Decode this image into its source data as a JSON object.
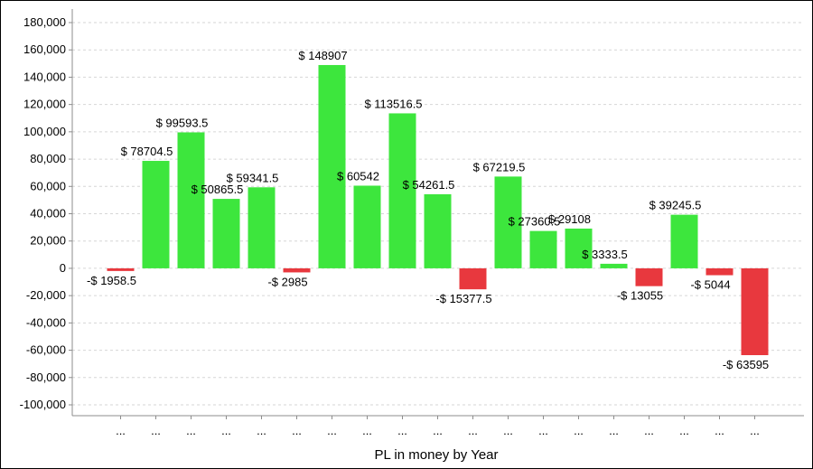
{
  "chart_data": {
    "type": "bar",
    "title": "",
    "xlabel": "PL in money by Year",
    "ylabel": "",
    "ylim": [
      -100000,
      180000
    ],
    "y_ticks": [
      180000,
      160000,
      140000,
      120000,
      100000,
      80000,
      60000,
      40000,
      20000,
      0,
      -20000,
      -40000,
      -60000,
      -80000,
      -100000
    ],
    "y_tick_labels": [
      "180,000",
      "160,000",
      "140,000",
      "120,000",
      "100,000",
      "80,000",
      "60,000",
      "40,000",
      "20,000",
      "0",
      "-20,000",
      "-40,000",
      "-60,000",
      "-80,000",
      "-100,000"
    ],
    "grid": true,
    "legend": "none",
    "categories": [
      "...",
      "...",
      "...",
      "...",
      "...",
      "...",
      "...",
      "...",
      "...",
      "...",
      "...",
      "...",
      "...",
      "...",
      "...",
      "...",
      "...",
      "...",
      "..."
    ],
    "values": [
      -1958.5,
      78704.5,
      99593.5,
      50865.5,
      59341.5,
      -2985,
      148907,
      60542,
      113516.5,
      54261.5,
      -15377.5,
      67219.5,
      27360.5,
      29108,
      3333.5,
      -13055,
      39245.5,
      -5044,
      -63595
    ],
    "data_labels": [
      "-$ 1958.5",
      "$ 78704.5",
      "$ 99593.5",
      "$ 50865.5",
      "$ 59341.5",
      "-$ 2985",
      "$ 148907",
      "$ 60542",
      "$ 113516.5",
      "$ 54261.5",
      "-$ 15377.5",
      "$ 67219.5",
      "$ 27360.5",
      "$ 29108",
      "$ 3333.5",
      "-$ 13055",
      "$ 39245.5",
      "-$ 5044",
      "-$ 63595"
    ],
    "colors": {
      "positive": "#3de63d",
      "negative": "#e8383e",
      "grid": "#d6d6d6",
      "axis": "#8c8c8c"
    }
  }
}
